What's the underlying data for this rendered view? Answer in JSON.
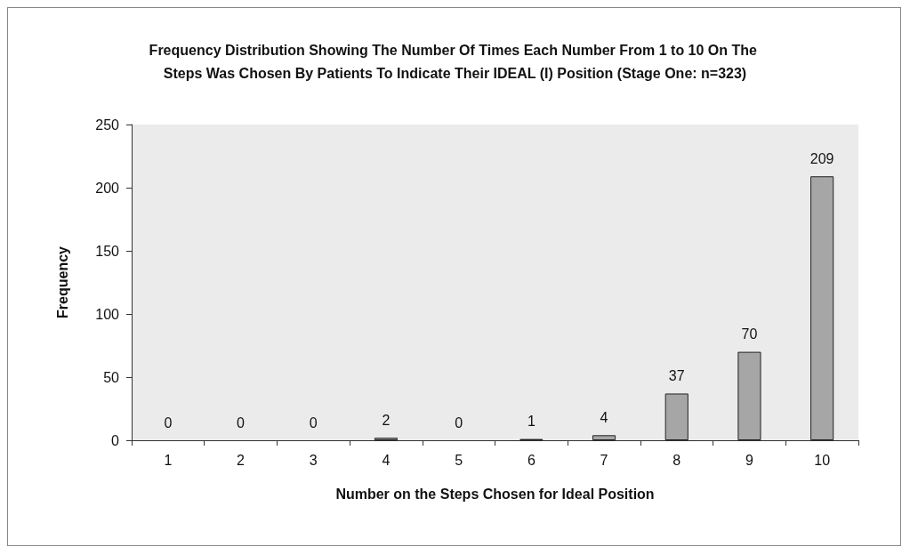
{
  "chart_data": {
    "type": "bar",
    "title": "Frequency Distribution Showing The Number Of Times Each Number From 1 to 10 On The Steps Was Chosen By Patients To Indicate Their IDEAL (I) Position (Stage One: n=323)",
    "xlabel": "Number on the Steps Chosen for Ideal Position",
    "ylabel": "Frequency",
    "categories": [
      "1",
      "2",
      "3",
      "4",
      "5",
      "6",
      "7",
      "8",
      "9",
      "10"
    ],
    "values": [
      0,
      0,
      0,
      2,
      0,
      1,
      4,
      37,
      70,
      209
    ],
    "color": "#a6a6a6",
    "ylim": [
      0,
      250
    ],
    "yticks": [
      0,
      50,
      100,
      150,
      200,
      250
    ],
    "grid": false,
    "data_labels": true
  }
}
